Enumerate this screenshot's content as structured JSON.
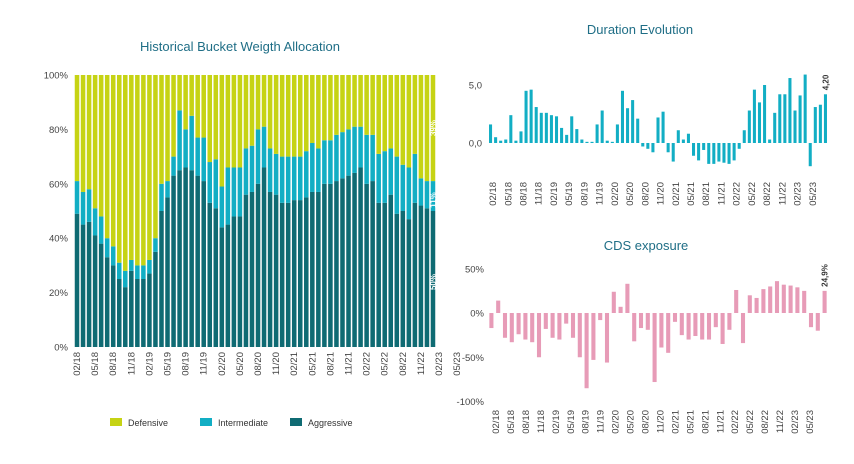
{
  "colors": {
    "defensive": "#c6d314",
    "intermediate": "#12aec4",
    "aggressive": "#0f6b73",
    "duration": "#12aec4",
    "cds": "#e79bb7",
    "title": "#1f6e86"
  },
  "chart_data": [
    {
      "type": "bar",
      "stacked": true,
      "title": "Historical Bucket Weigth Allocation",
      "yticks": [
        "0%",
        "20%",
        "40%",
        "60%",
        "80%",
        "100%"
      ],
      "ylim": [
        0,
        100
      ],
      "xtick_labels": [
        "02/18",
        "05/18",
        "08/18",
        "11/18",
        "02/19",
        "05/19",
        "08/19",
        "11/19",
        "02/20",
        "05/20",
        "08/20",
        "11/20",
        "02/21",
        "05/21",
        "08/21",
        "11/21",
        "02/22",
        "05/22",
        "08/22",
        "11/22",
        "02/23",
        "05/23"
      ],
      "legend": [
        "Defensive",
        "Intermediate",
        "Aggressive"
      ],
      "last_labels": [
        "50%",
        "11%",
        "39%"
      ],
      "series": [
        {
          "name": "Aggressive",
          "values": [
            49,
            45,
            46,
            41,
            38,
            33,
            30,
            25,
            22,
            28,
            25,
            25,
            27,
            35,
            50,
            55,
            63,
            65,
            66,
            65,
            63,
            61,
            53,
            51,
            44,
            45,
            48,
            48,
            56,
            57,
            60,
            66,
            57,
            56,
            53,
            53,
            54,
            54,
            55,
            57,
            57,
            60,
            60,
            61,
            62,
            63,
            64,
            66,
            60,
            61,
            53,
            53,
            56,
            49,
            50,
            47,
            53,
            52,
            51,
            50
          ]
        },
        {
          "name": "Intermediate",
          "values": [
            12,
            12,
            12,
            10,
            10,
            7,
            7,
            6,
            6,
            4,
            5,
            5,
            5,
            5,
            10,
            6,
            7,
            22,
            14,
            20,
            14,
            16,
            15,
            18,
            15,
            21,
            18,
            18,
            17,
            17,
            20,
            15,
            16,
            15,
            17,
            17,
            16,
            16,
            17,
            18,
            16,
            16,
            16,
            17,
            17,
            17,
            17,
            15,
            18,
            17,
            18,
            19,
            17,
            21,
            17,
            19,
            18,
            10,
            10,
            11
          ]
        },
        {
          "name": "Defensive",
          "values": [
            39,
            43,
            42,
            49,
            52,
            60,
            63,
            69,
            72,
            68,
            70,
            70,
            68,
            60,
            40,
            39,
            30,
            13,
            20,
            15,
            23,
            23,
            32,
            31,
            41,
            34,
            34,
            34,
            27,
            26,
            20,
            19,
            27,
            29,
            30,
            30,
            30,
            30,
            28,
            25,
            27,
            24,
            24,
            22,
            21,
            20,
            19,
            19,
            22,
            22,
            29,
            28,
            27,
            30,
            33,
            34,
            29,
            38,
            39,
            39
          ]
        }
      ]
    },
    {
      "type": "bar",
      "title": "Duration Evolution",
      "yticks": [
        "0,0",
        "5,0"
      ],
      "ylim": [
        -3.5,
        8.5
      ],
      "xtick_labels": [
        "02/18",
        "05/18",
        "08/18",
        "11/18",
        "02/19",
        "05/19",
        "08/19",
        "11/19",
        "02/20",
        "05/20",
        "08/20",
        "11/20",
        "02/21",
        "05/21",
        "08/21",
        "11/21",
        "02/22",
        "05/22",
        "08/22",
        "11/22",
        "02/23",
        "05/23"
      ],
      "last_label": "4,20",
      "values": [
        1.6,
        0.5,
        0.2,
        0.3,
        2.4,
        0.2,
        1.0,
        4.5,
        4.6,
        3.1,
        2.6,
        2.6,
        2.4,
        2.3,
        1.3,
        0.7,
        2.3,
        1.2,
        0.3,
        0.1,
        0.1,
        1.6,
        2.8,
        0.2,
        0.1,
        1.6,
        4.5,
        3.0,
        3.7,
        2.1,
        -0.3,
        -0.5,
        -0.8,
        2.2,
        2.7,
        -0.8,
        -1.6,
        1.1,
        0.3,
        0.8,
        -1.1,
        -1.5,
        -0.6,
        -1.8,
        -1.8,
        -1.6,
        -1.7,
        -1.8,
        -1.5,
        -0.5,
        1.1,
        2.8,
        4.6,
        3.5,
        5.0,
        0.3,
        2.6,
        4.2,
        4.2,
        5.6,
        2.8,
        4.1,
        5.9,
        -2.0,
        3.1,
        3.3,
        4.2
      ]
    },
    {
      "type": "bar",
      "title": "CDS exposure",
      "yticks": [
        "-100%",
        "-50%",
        "0%",
        "50%"
      ],
      "ylim": [
        -100,
        50
      ],
      "xtick_labels": [
        "02/18",
        "05/18",
        "08/18",
        "11/18",
        "02/19",
        "05/19",
        "08/19",
        "11/19",
        "02/20",
        "05/20",
        "08/20",
        "11/20",
        "02/21",
        "05/21",
        "08/21",
        "11/21",
        "02/22",
        "05/22",
        "08/22",
        "11/22",
        "02/23",
        "05/23"
      ],
      "last_label": "24,9%",
      "values": [
        -17,
        14,
        -28,
        -33,
        -24,
        -30,
        -33,
        -50,
        -18,
        -28,
        -30,
        -12,
        -28,
        -50,
        -85,
        -53,
        -8,
        -56,
        24,
        7,
        33,
        -32,
        -17,
        -19,
        -78,
        -39,
        -45,
        -10,
        -25,
        -30,
        -26,
        -30,
        -30,
        -16,
        -35,
        -19,
        26,
        -34,
        20,
        17,
        27,
        30,
        36,
        32,
        31,
        29,
        25,
        -16,
        -20,
        25
      ]
    }
  ]
}
